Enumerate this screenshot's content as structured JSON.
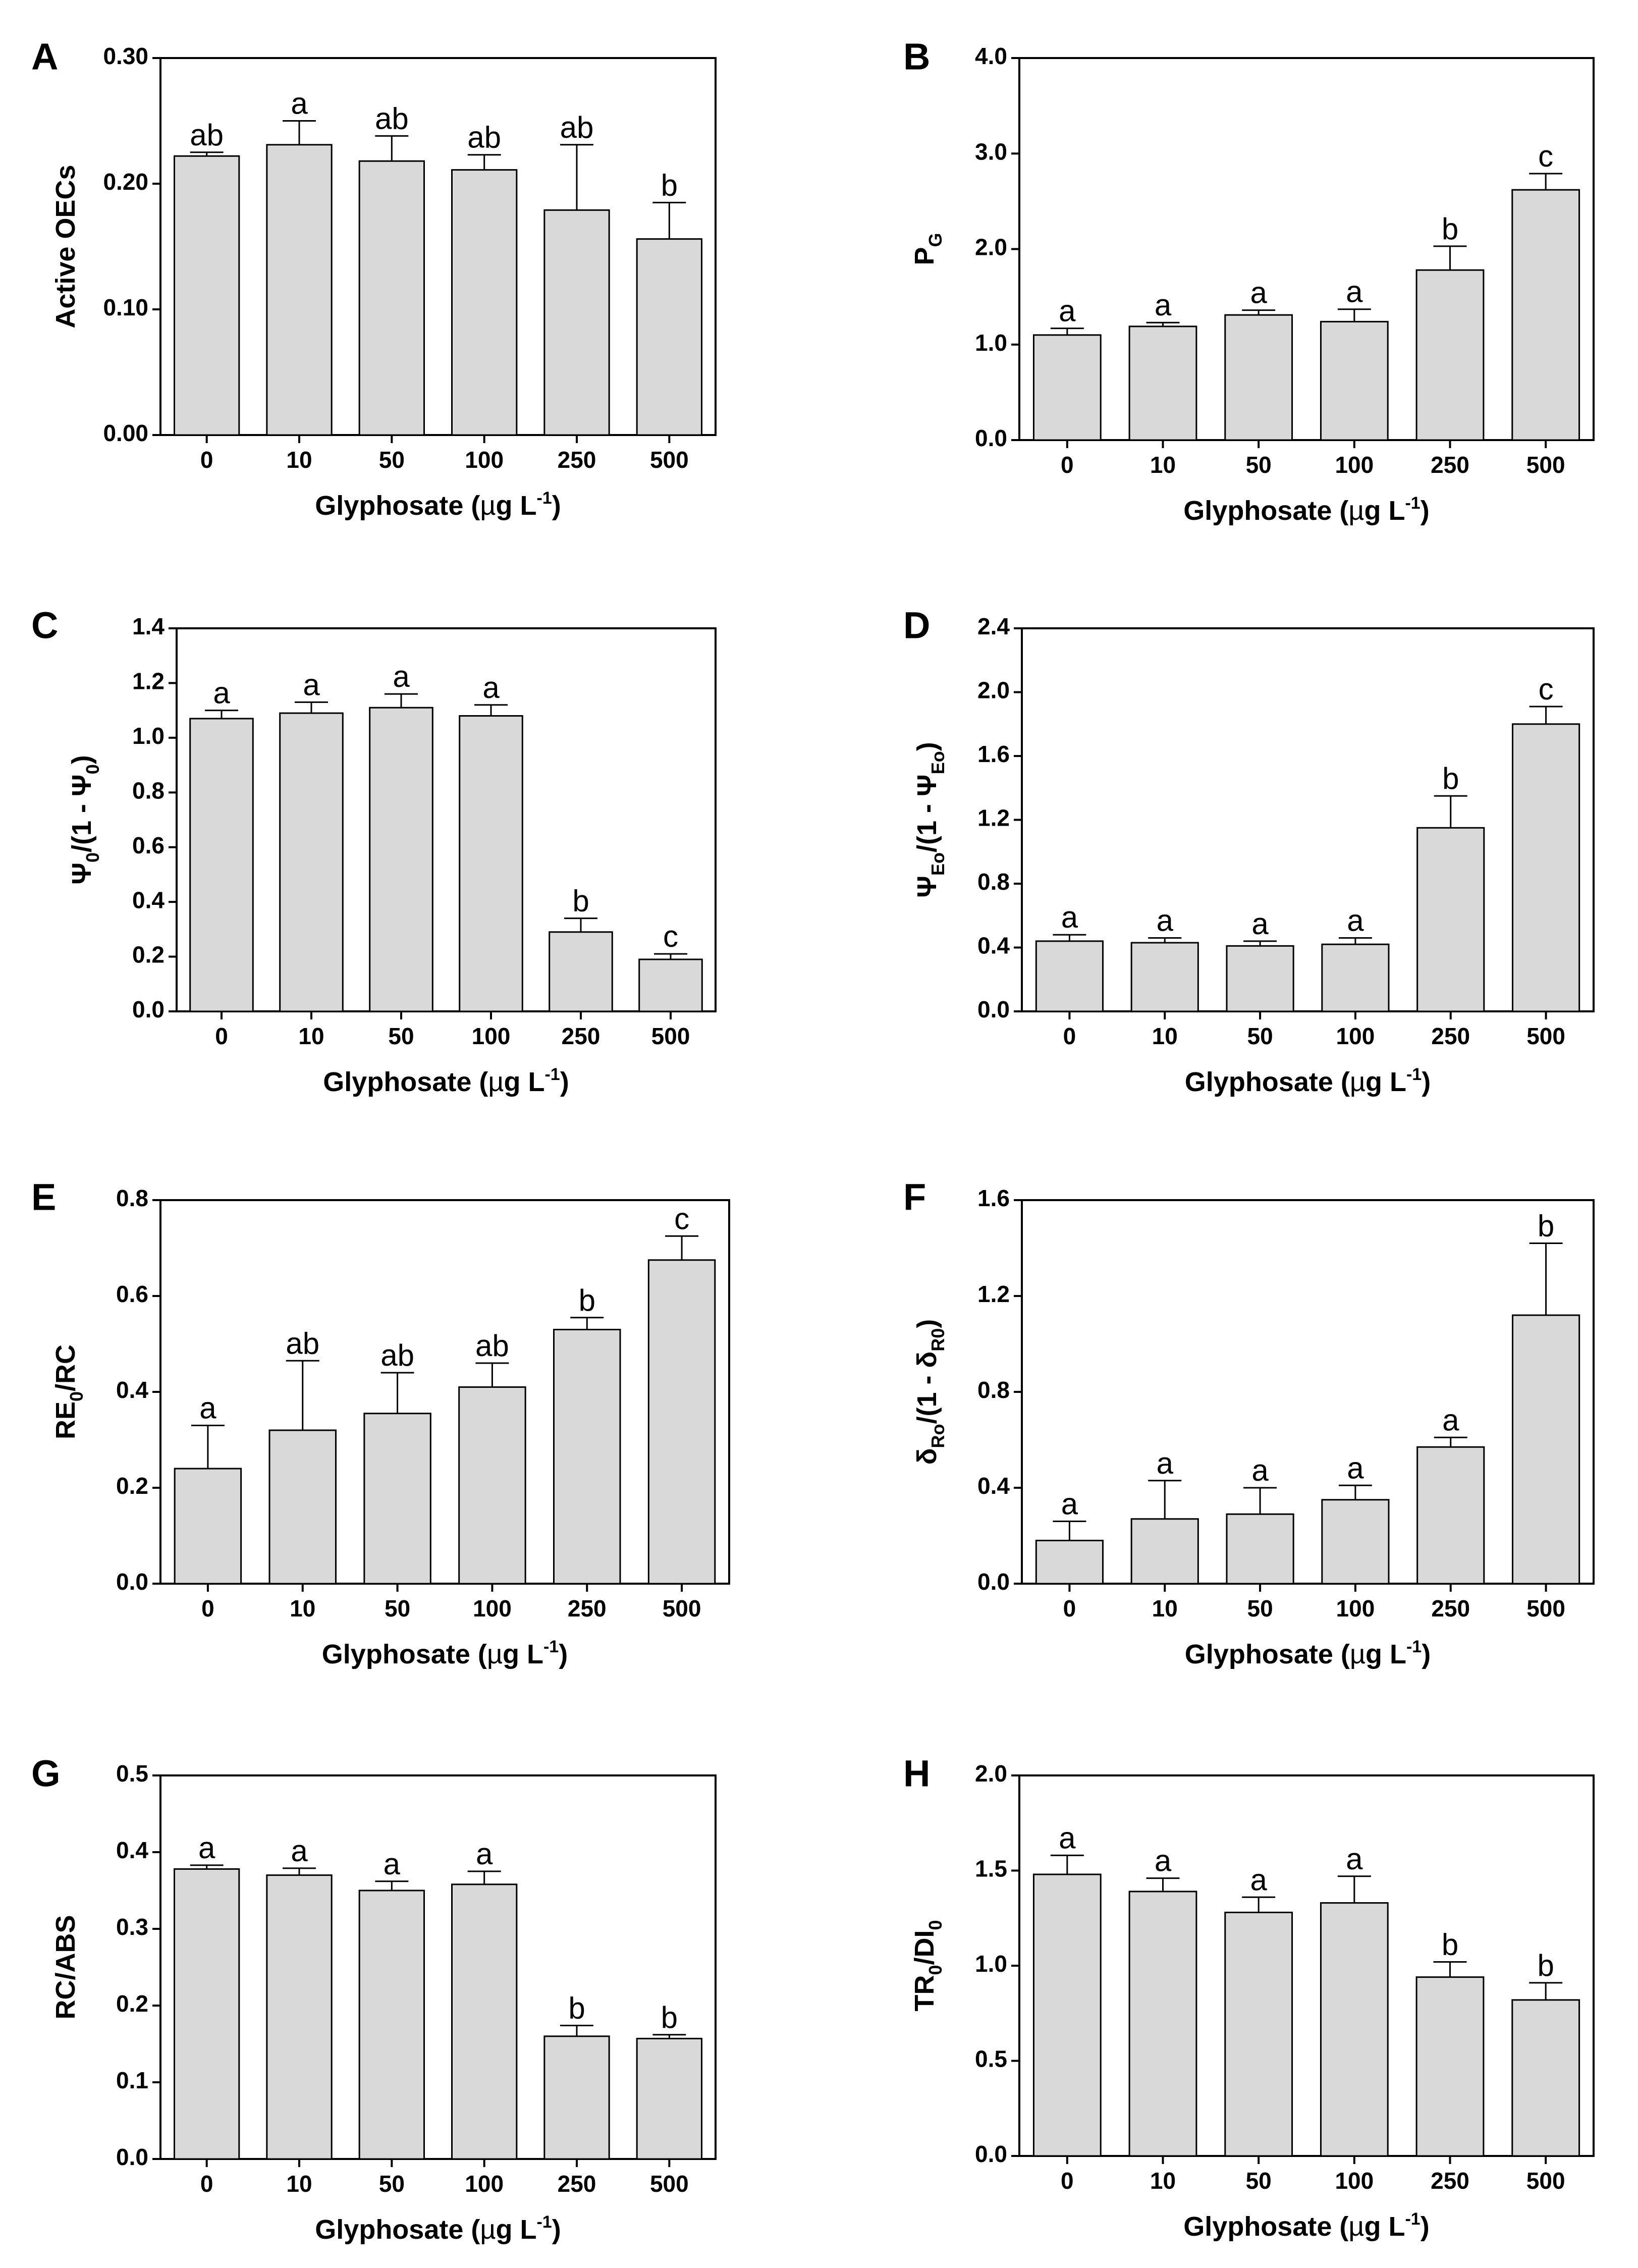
{
  "chart_data": [
    {
      "type": "bar",
      "panel": "A",
      "categories": [
        "0",
        "10",
        "50",
        "100",
        "250",
        "500"
      ],
      "values": [
        0.222,
        0.231,
        0.218,
        0.211,
        0.179,
        0.156
      ],
      "errors": [
        0.003,
        0.019,
        0.02,
        0.012,
        0.052,
        0.029
      ],
      "letters": [
        "ab",
        "a",
        "ab",
        "ab",
        "ab",
        "b"
      ],
      "ylim": [
        0,
        0.3
      ],
      "yticks": [
        0,
        0.1,
        0.2,
        0.3
      ],
      "ytick_labels": [
        "0.00",
        "0.10",
        "0.20",
        "0.30"
      ],
      "ylabel": [
        "Active OECs"
      ],
      "xlabel": [
        "Glyphosate (",
        "µ",
        "g L",
        "-1",
        ")"
      ]
    },
    {
      "type": "bar",
      "panel": "B",
      "categories": [
        "0",
        "10",
        "50",
        "100",
        "250",
        "500"
      ],
      "values": [
        1.1,
        1.19,
        1.31,
        1.24,
        1.78,
        2.62
      ],
      "errors": [
        0.07,
        0.04,
        0.05,
        0.13,
        0.25,
        0.17
      ],
      "letters": [
        "a",
        "a",
        "a",
        "a",
        "b",
        "c"
      ],
      "ylim": [
        0,
        4
      ],
      "yticks": [
        0,
        1,
        2,
        3,
        4
      ],
      "ytick_labels": [
        "0.0",
        "1.0",
        "2.0",
        "3.0",
        "4.0"
      ],
      "ylabel": [
        "P",
        "G"
      ],
      "xlabel": [
        "Glyphosate (",
        "µ",
        "g L",
        "-1",
        ")"
      ]
    },
    {
      "type": "bar",
      "panel": "C",
      "categories": [
        "0",
        "10",
        "50",
        "100",
        "250",
        "500"
      ],
      "values": [
        1.07,
        1.09,
        1.11,
        1.08,
        0.29,
        0.19
      ],
      "errors": [
        0.03,
        0.04,
        0.05,
        0.04,
        0.05,
        0.02
      ],
      "letters": [
        "a",
        "a",
        "a",
        "a",
        "b",
        "c"
      ],
      "ylim": [
        0,
        1.4
      ],
      "yticks": [
        0,
        0.2,
        0.4,
        0.6,
        0.8,
        1.0,
        1.2,
        1.4
      ],
      "ytick_labels": [
        "0.0",
        "0.2",
        "0.4",
        "0.6",
        "0.8",
        "1.0",
        "1.2",
        "1.4"
      ],
      "ylabel": [
        "Ψ",
        "0",
        "/(1 - Ψ",
        "0",
        ")"
      ],
      "xlabel": [
        "Glyphosate (",
        "µ",
        "g L",
        "-1",
        ")"
      ]
    },
    {
      "type": "bar",
      "panel": "D",
      "categories": [
        "0",
        "10",
        "50",
        "100",
        "250",
        "500"
      ],
      "values": [
        0.44,
        0.43,
        0.41,
        0.42,
        1.15,
        1.8
      ],
      "errors": [
        0.04,
        0.03,
        0.03,
        0.04,
        0.2,
        0.11
      ],
      "letters": [
        "a",
        "a",
        "a",
        "a",
        "b",
        "c"
      ],
      "ylim": [
        0,
        2.4
      ],
      "yticks": [
        0,
        0.4,
        0.8,
        1.2,
        1.6,
        2.0,
        2.4
      ],
      "ytick_labels": [
        "0.0",
        "0.4",
        "0.8",
        "1.2",
        "1.6",
        "2.0",
        "2.4"
      ],
      "ylabel": [
        "Ψ",
        "Eo",
        "/(1 - Ψ",
        "Eo",
        ")"
      ],
      "xlabel": [
        "Glyphosate (",
        "µ",
        "g L",
        "-1",
        ")"
      ]
    },
    {
      "type": "bar",
      "panel": "E",
      "categories": [
        "0",
        "10",
        "50",
        "100",
        "250",
        "500"
      ],
      "values": [
        0.24,
        0.32,
        0.355,
        0.41,
        0.53,
        0.675
      ],
      "errors": [
        0.09,
        0.145,
        0.085,
        0.05,
        0.025,
        0.05
      ],
      "letters": [
        "a",
        "ab",
        "ab",
        "ab",
        "b",
        "c"
      ],
      "ylim": [
        0,
        0.8
      ],
      "yticks": [
        0,
        0.2,
        0.4,
        0.6,
        0.8
      ],
      "ytick_labels": [
        "0.0",
        "0.2",
        "0.4",
        "0.6",
        "0.8"
      ],
      "ylabel": [
        "RE",
        "0",
        "/RC"
      ],
      "xlabel": [
        "Glyphosate (",
        "µ",
        "g L",
        "-1",
        ")"
      ]
    },
    {
      "type": "bar",
      "panel": "F",
      "categories": [
        "0",
        "10",
        "50",
        "100",
        "250",
        "500"
      ],
      "values": [
        0.18,
        0.27,
        0.29,
        0.35,
        0.57,
        1.12
      ],
      "errors": [
        0.08,
        0.16,
        0.11,
        0.06,
        0.04,
        0.3
      ],
      "letters": [
        "a",
        "a",
        "a",
        "a",
        "a",
        "b"
      ],
      "ylim": [
        0,
        1.6
      ],
      "yticks": [
        0,
        0.4,
        0.8,
        1.2,
        1.6
      ],
      "ytick_labels": [
        "0.0",
        "0.4",
        "0.8",
        "1.2",
        "1.6"
      ],
      "ylabel": [
        "δ",
        "Ro",
        "/(1 - δ",
        "R0",
        ")"
      ],
      "xlabel": [
        "Glyphosate (",
        "µ",
        "g L",
        "-1",
        ")"
      ]
    },
    {
      "type": "bar",
      "panel": "G",
      "categories": [
        "0",
        "10",
        "50",
        "100",
        "250",
        "500"
      ],
      "values": [
        0.378,
        0.37,
        0.35,
        0.358,
        0.16,
        0.157
      ],
      "errors": [
        0.005,
        0.009,
        0.012,
        0.017,
        0.014,
        0.005
      ],
      "letters": [
        "a",
        "a",
        "a",
        "a",
        "b",
        "b"
      ],
      "ylim": [
        0,
        0.5
      ],
      "yticks": [
        0,
        0.1,
        0.2,
        0.3,
        0.4,
        0.5
      ],
      "ytick_labels": [
        "0.0",
        "0.1",
        "0.2",
        "0.3",
        "0.4",
        "0.5"
      ],
      "ylabel": [
        "RC/ABS"
      ],
      "xlabel": [
        "Glyphosate (",
        "µ",
        "g L",
        "-1",
        ")"
      ]
    },
    {
      "type": "bar",
      "panel": "H",
      "categories": [
        "0",
        "10",
        "50",
        "100",
        "250",
        "500"
      ],
      "values": [
        1.48,
        1.39,
        1.28,
        1.33,
        0.94,
        0.82
      ],
      "errors": [
        0.1,
        0.07,
        0.08,
        0.14,
        0.08,
        0.09
      ],
      "letters": [
        "a",
        "a",
        "a",
        "a",
        "b",
        "b"
      ],
      "ylim": [
        0,
        2.0
      ],
      "yticks": [
        0,
        0.5,
        1.0,
        1.5,
        2.0
      ],
      "ytick_labels": [
        "0.0",
        "0.5",
        "1.0",
        "1.5",
        "2.0"
      ],
      "ylabel": [
        "TR",
        "0",
        "/DI",
        "0"
      ],
      "xlabel": [
        "Glyphosate (",
        "µ",
        "g L",
        "-1",
        ")"
      ]
    }
  ]
}
